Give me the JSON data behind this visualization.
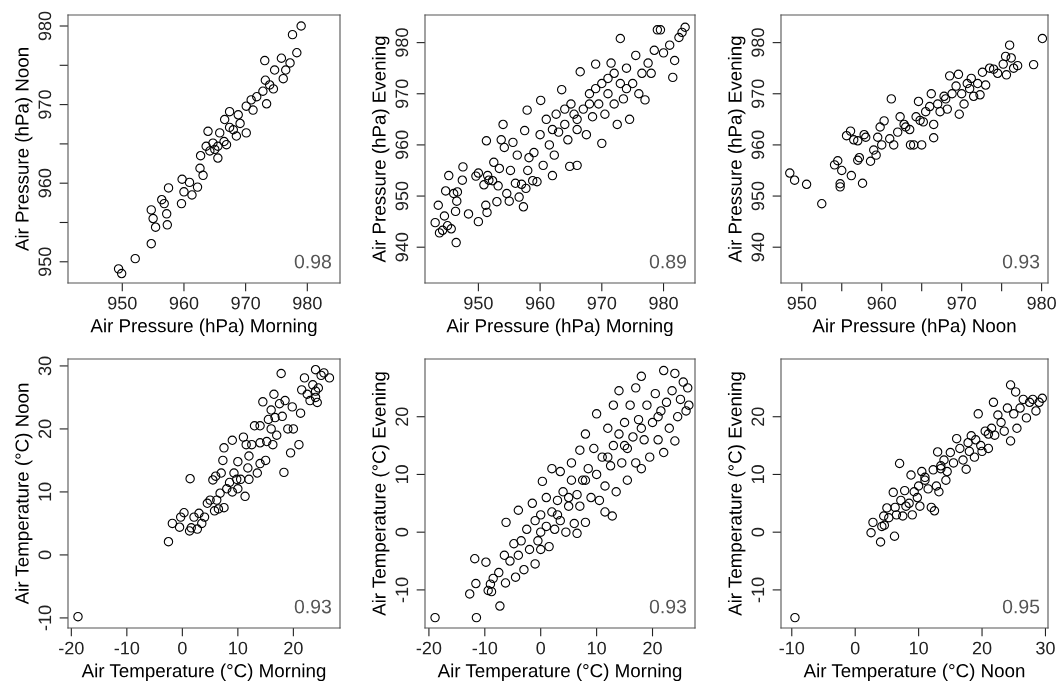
{
  "chart_data": [
    {
      "type": "scatter",
      "xlabel": "Air Pressure (hPa) Morning",
      "ylabel": "Air Pressure (hPa) Noon",
      "annotations": [
        "0.98"
      ],
      "marker": "circle",
      "grid": false,
      "legend": false,
      "xlim": [
        941.2,
        985.3
      ],
      "ylim": [
        947.3,
        981.4
      ],
      "xticks": [
        950,
        960,
        970,
        980
      ],
      "yticks": [
        950,
        {
          "value": 955,
          "label": null
        },
        960,
        {
          "value": 965,
          "label": null
        },
        970,
        {
          "value": 975,
          "label": null
        },
        980
      ],
      "series": [
        {
          "color": "#000000",
          "x": [
            949.4,
            949.9,
            952.1,
            954.7,
            954.7,
            955.0,
            955.4,
            956.4,
            956.8,
            957.2,
            957.3,
            957.5,
            959.6,
            960.0,
            959.7,
            961.3,
            960.9,
            962.2,
            962.6,
            962.7,
            963.1,
            963.9,
            963.6,
            964.2,
            965.0,
            965.5,
            965.8,
            966.5,
            966.9,
            967.4,
            968.0,
            968.5,
            968.8,
            970.1,
            970.1,
            970.9,
            971.8,
            972.8,
            973.4,
            973.2,
            973.9,
            974.5,
            974.7,
            976.1,
            975.8,
            973.1,
            976.5,
            977.2,
            978.3,
            977.6,
            979.0,
            967.4,
            966.6,
            964.7,
            969.1,
            971.2,
            965.5
          ],
          "values": [
            949.1,
            948.5,
            950.4,
            952.3,
            956.6,
            955.5,
            954.4,
            957.9,
            957.4,
            956.1,
            954.7,
            959.4,
            957.4,
            958.9,
            960.5,
            958.5,
            960.1,
            959.5,
            961.9,
            963.5,
            961.0,
            966.6,
            964.7,
            964.1,
            964.3,
            963.2,
            966.4,
            965.3,
            964.9,
            967.1,
            966.8,
            966.0,
            968.7,
            966.4,
            969.8,
            970.6,
            971.0,
            971.7,
            970.1,
            973.1,
            972.5,
            972.0,
            974.4,
            973.3,
            975.9,
            975.6,
            974.4,
            975.3,
            976.6,
            978.9,
            980.0,
            969.1,
            968.1,
            965.1,
            967.6,
            969.3,
            964.7
          ]
        }
      ]
    },
    {
      "type": "scatter",
      "xlabel": "Air Pressure (hPa) Morning",
      "ylabel": "Air Pressure (hPa) Evening",
      "annotations": [
        "0.89"
      ],
      "marker": "circle",
      "grid": false,
      "legend": false,
      "xlim": [
        941.35,
        985.1
      ],
      "ylim": [
        933.0,
        985.4
      ],
      "xticks": [
        950,
        960,
        970,
        980
      ],
      "yticks": [
        940,
        950,
        960,
        970,
        980
      ],
      "series": [
        {
          "color": "#000000",
          "x": [
            943.0,
            943.5,
            943.7,
            944.2,
            944.5,
            944.7,
            945.0,
            945.2,
            945.6,
            946.0,
            946.3,
            946.5,
            946.4,
            946.6,
            947.5,
            947.4,
            948.4,
            949.6,
            950.0,
            950.0,
            950.9,
            951.2,
            951.4,
            951.3,
            951.5,
            951.7,
            952.3,
            952.5,
            953.0,
            953.2,
            953.4,
            953.7,
            954.0,
            954.2,
            954.6,
            955.0,
            955.2,
            955.6,
            956.0,
            956.3,
            956.6,
            957.0,
            957.3,
            957.5,
            957.7,
            957.9,
            958.0,
            958.2,
            958.8,
            959.0,
            959.5,
            960.0,
            960.1,
            960.5,
            961.0,
            961.5,
            962.0,
            962.3,
            962.6,
            963.0,
            963.5,
            964.0,
            964.5,
            964.8,
            965.0,
            965.5,
            966.0,
            966.0,
            966.5,
            967.0,
            967.5,
            968.0,
            968.5,
            969.0,
            969.5,
            970.0,
            970.0,
            970.5,
            971.0,
            971.5,
            972.0,
            972.5,
            973.0,
            973.0,
            973.5,
            974.0,
            974.5,
            975.0,
            975.5,
            976.0,
            976.5,
            977.0,
            977.5,
            978.0,
            978.5,
            979.0,
            979.5,
            980.0,
            981.0,
            981.5,
            981.8,
            982.5,
            983.0,
            983.5,
            966.0,
            968.0,
            971.0,
            974.0,
            964.0,
            962.0,
            969.0,
            972.0
          ],
          "values": [
            944.8,
            948.2,
            942.8,
            943.3,
            946.1,
            951.0,
            944.2,
            954.0,
            943.6,
            950.5,
            947.0,
            949.0,
            940.9,
            950.8,
            955.7,
            953.1,
            946.5,
            953.9,
            945.0,
            954.5,
            952.2,
            948.2,
            946.8,
            960.8,
            954.0,
            953.1,
            953.0,
            956.6,
            948.9,
            952.0,
            955.4,
            961.0,
            964.0,
            959.5,
            950.5,
            949.0,
            955.0,
            960.5,
            952.5,
            958.0,
            949.8,
            952.3,
            947.9,
            962.8,
            951.5,
            966.8,
            955.0,
            957.5,
            953.0,
            958.5,
            952.8,
            962.0,
            968.7,
            956.0,
            965.0,
            960.0,
            954.0,
            958.0,
            966.0,
            962.5,
            970.8,
            964.0,
            961.0,
            955.8,
            968.0,
            966.0,
            963.0,
            956.0,
            974.3,
            967.0,
            962.0,
            970.0,
            965.5,
            975.8,
            968.0,
            960.3,
            972.0,
            966.0,
            970.0,
            976.0,
            968.0,
            964.0,
            980.8,
            972.0,
            969.0,
            975.0,
            965.0,
            972.0,
            977.5,
            970.0,
            974.0,
            968.8,
            976.0,
            974.0,
            978.5,
            982.5,
            982.5,
            978.0,
            979.5,
            973.2,
            976.5,
            981.0,
            982.0,
            983.0,
            965.0,
            968.0,
            973.0,
            971.0,
            967.0,
            963.0,
            971.0,
            974.0
          ]
        }
      ]
    },
    {
      "type": "scatter",
      "xlabel": "Air Pressure (hPa) Noon",
      "ylabel": "Air Pressure (hPa) Evening",
      "annotations": [
        "0.93"
      ],
      "marker": "circle",
      "grid": false,
      "legend": false,
      "xlim": [
        947.4,
        980.8
      ],
      "ylim": [
        933.0,
        985.4
      ],
      "xticks": [
        950,
        {
          "value": 955,
          "label": null
        },
        960,
        {
          "value": 965,
          "label": null
        },
        970,
        {
          "value": 975,
          "label": null
        },
        980
      ],
      "yticks": [
        940,
        950,
        960,
        970,
        980
      ],
      "series": [
        {
          "color": "#000000",
          "x": [
            948.5,
            949.1,
            950.6,
            952.5,
            954.1,
            954.5,
            954.8,
            954.8,
            955.0,
            955.6,
            956.1,
            956.2,
            956.5,
            957.0,
            957.2,
            957.0,
            957.6,
            957.8,
            958.0,
            958.6,
            959.0,
            959.3,
            959.5,
            959.8,
            960.0,
            960.3,
            961.0,
            961.2,
            961.5,
            962.0,
            962.3,
            962.8,
            963.5,
            963.6,
            964.0,
            964.3,
            964.6,
            965.0,
            965.2,
            965.5,
            966.2,
            966.5,
            966.5,
            967.0,
            967.3,
            967.8,
            968.2,
            968.5,
            968.8,
            969.3,
            969.6,
            969.7,
            970.0,
            970.3,
            970.7,
            971.2,
            971.5,
            972.0,
            972.3,
            972.6,
            973.0,
            973.5,
            974.0,
            974.5,
            975.2,
            975.5,
            975.6,
            976.0,
            976.2,
            976.5,
            977.0,
            979.0,
            980.1,
            966.0,
            968.0,
            971.0,
            964.8,
            963.0
          ],
          "values": [
            954.5,
            953.1,
            952.3,
            948.5,
            956.1,
            956.9,
            952.4,
            951.8,
            955.0,
            961.8,
            962.7,
            954.0,
            961.0,
            957.0,
            957.5,
            960.8,
            952.5,
            962.0,
            961.5,
            956.8,
            959.0,
            958.0,
            961.5,
            963.5,
            960.0,
            964.7,
            961.2,
            969.0,
            960.0,
            962.5,
            965.5,
            964.0,
            963.0,
            960.0,
            960.0,
            965.5,
            968.5,
            960.0,
            964.5,
            966.5,
            970.0,
            964.0,
            961.4,
            968.0,
            966.5,
            969.5,
            967.0,
            973.5,
            970.0,
            971.5,
            973.8,
            966.0,
            970.0,
            968.0,
            972.0,
            973.0,
            969.5,
            972.0,
            969.8,
            974.2,
            971.7,
            975.0,
            974.8,
            974.0,
            975.8,
            977.3,
            973.7,
            979.5,
            977.0,
            975.0,
            975.5,
            975.7,
            980.8,
            967.5,
            969.0,
            971.0,
            964.8,
            963.5
          ]
        }
      ]
    },
    {
      "type": "scatter",
      "xlabel": "Air Temperature (°C) Morning",
      "ylabel": "Air Temperature (°C) Noon",
      "annotations": [
        "0.93"
      ],
      "marker": "circle",
      "grid": false,
      "legend": false,
      "xlim": [
        -20.6,
        28.4
      ],
      "ylim": [
        -11.6,
        31.1
      ],
      "xticks": [
        -20,
        -10,
        0,
        10,
        20
      ],
      "yticks": [
        -10,
        0,
        10,
        20,
        30
      ],
      "series": [
        {
          "color": "#000000",
          "x": [
            -18.8,
            -2.5,
            -1.8,
            -0.5,
            -0.3,
            0.3,
            1.4,
            1.3,
            1.6,
            2.1,
            2.7,
            3.0,
            3.5,
            4.0,
            4.5,
            5.0,
            5.5,
            5.8,
            6.0,
            6.2,
            6.5,
            6.8,
            7.0,
            7.3,
            7.5,
            7.5,
            8.0,
            8.5,
            9.0,
            9.0,
            9.3,
            9.8,
            10.0,
            10.5,
            11.0,
            11.3,
            11.5,
            11.8,
            12.0,
            12.5,
            13.0,
            13.5,
            14.0,
            14.0,
            14.5,
            15.0,
            15.2,
            15.5,
            16.0,
            16.3,
            16.5,
            16.7,
            17.0,
            17.5,
            17.8,
            18.0,
            18.3,
            18.5,
            19.0,
            19.5,
            19.8,
            20.0,
            21.0,
            21.3,
            21.5,
            22.0,
            22.5,
            23.0,
            23.5,
            24.0,
            24.0,
            24.3,
            24.5,
            25.0,
            25.5,
            26.5,
            12.0,
            10.0,
            16.0,
            14.0,
            24.0
          ],
          "values": [
            -9.8,
            2.1,
            5.0,
            4.4,
            6.0,
            6.7,
            12.1,
            3.8,
            4.3,
            6.0,
            4.1,
            6.6,
            5.0,
            6.0,
            8.2,
            8.7,
            11.9,
            7.0,
            12.5,
            8.7,
            7.3,
            9.8,
            13.0,
            15.0,
            7.5,
            17.0,
            10.5,
            11.5,
            18.2,
            10.0,
            13.0,
            12.0,
            14.8,
            12.0,
            18.7,
            9.3,
            17.5,
            13.8,
            15.7,
            17.5,
            20.5,
            13.0,
            17.8,
            20.5,
            24.3,
            15.0,
            18.0,
            21.5,
            23.0,
            17.5,
            25.5,
            21.8,
            19.0,
            24.0,
            28.8,
            22.0,
            13.1,
            24.5,
            20.0,
            16.2,
            23.5,
            20.0,
            17.5,
            22.5,
            26.2,
            28.1,
            25.5,
            24.5,
            27.0,
            29.4,
            25.0,
            24.2,
            26.5,
            28.5,
            28.9,
            28.1,
            12.0,
            10.5,
            20.0,
            14.5,
            26.0
          ]
        }
      ]
    },
    {
      "type": "scatter",
      "xlabel": "Air Temperature (°C) Morning",
      "ylabel": "Air Temperature (°C) Evening",
      "annotations": [
        "0.93"
      ],
      "marker": "circle",
      "grid": false,
      "legend": false,
      "xlim": [
        -20.7,
        27.6
      ],
      "ylim": [
        -16.6,
        30.0
      ],
      "xticks": [
        -20,
        -10,
        0,
        10,
        20
      ],
      "yticks": [
        -10,
        0,
        10,
        20
      ],
      "series": [
        {
          "color": "#000000",
          "x": [
            -18.9,
            -11.5,
            -12.7,
            -11.8,
            -11.6,
            -9.8,
            -9.4,
            -9.0,
            -8.8,
            -8.5,
            -7.5,
            -7.3,
            -6.5,
            -6.3,
            -6.2,
            -5.5,
            -4.8,
            -4.5,
            -4.0,
            -4.0,
            -3.5,
            -3.0,
            -2.5,
            -2.0,
            -1.5,
            -1.0,
            -1.0,
            -0.5,
            0.0,
            0.0,
            0.3,
            1.0,
            1.0,
            1.5,
            2.0,
            2.0,
            2.5,
            3.0,
            3.5,
            3.5,
            4.0,
            4.5,
            5.0,
            5.5,
            5.5,
            6.0,
            6.5,
            6.5,
            7.0,
            7.0,
            7.5,
            8.0,
            8.0,
            8.5,
            9.0,
            9.5,
            10.0,
            10.0,
            10.5,
            11.0,
            11.5,
            11.5,
            12.0,
            12.5,
            12.8,
            13.0,
            13.0,
            13.5,
            14.0,
            14.0,
            14.5,
            15.0,
            15.5,
            15.5,
            16.0,
            16.5,
            17.0,
            17.0,
            17.5,
            18.0,
            18.0,
            18.5,
            19.0,
            19.5,
            20.0,
            20.5,
            21.0,
            21.5,
            22.0,
            22.0,
            22.5,
            23.0,
            23.5,
            24.0,
            24.0,
            24.5,
            25.0,
            25.5,
            26.0,
            26.3,
            26.5,
            5.0,
            3.0,
            8.0,
            15.0,
            18.0,
            21.0,
            12.0,
            0.0
          ],
          "values": [
            -14.8,
            -14.8,
            -10.7,
            -4.6,
            -8.9,
            -5.2,
            -10.1,
            -9.0,
            -10.3,
            -8.0,
            -7.0,
            -12.8,
            -4.0,
            -8.8,
            1.7,
            -5.0,
            -2.0,
            -7.8,
            3.8,
            -4.0,
            -1.5,
            -6.5,
            0.5,
            -3.0,
            5.0,
            2.0,
            -5.5,
            -1.5,
            3.0,
            -3.0,
            8.8,
            1.0,
            6.0,
            -2.5,
            3.5,
            11.0,
            0.5,
            5.5,
            10.5,
            2.0,
            7.0,
            0.0,
            4.5,
            9.0,
            12.0,
            1.5,
            6.5,
            -0.2,
            14.2,
            4.5,
            9.0,
            1.7,
            17.0,
            11.0,
            6.0,
            14.5,
            10.0,
            20.5,
            5.5,
            13.0,
            8.0,
            3.5,
            18.0,
            11.5,
            2.8,
            15.0,
            22.0,
            7.0,
            17.0,
            24.5,
            12.0,
            19.0,
            9.0,
            14.5,
            22.0,
            16.5,
            25.0,
            12.0,
            19.5,
            27.0,
            11.0,
            16.0,
            22.0,
            13.0,
            19.0,
            24.0,
            16.0,
            21.0,
            28.0,
            13.8,
            22.5,
            18.0,
            24.5,
            15.8,
            27.5,
            20.0,
            23.0,
            26.0,
            21.0,
            25.0,
            22.0,
            6.0,
            3.0,
            9.0,
            15.0,
            18.0,
            20.0,
            13.0,
            0.0
          ]
        }
      ]
    },
    {
      "type": "scatter",
      "xlabel": "Air Temperature (°C) Noon",
      "ylabel": "Air Temperature (°C) Evening",
      "annotations": [
        "0.95"
      ],
      "marker": "circle",
      "grid": false,
      "legend": false,
      "xlim": [
        -11.7,
        30.4
      ],
      "ylim": [
        -16.6,
        30.0
      ],
      "xticks": [
        -10,
        0,
        10,
        20,
        30
      ],
      "yticks": [
        -10,
        0,
        10,
        20
      ],
      "series": [
        {
          "color": "#000000",
          "x": [
            -9.5,
            2.5,
            2.8,
            4.0,
            4.2,
            4.6,
            4.5,
            5.0,
            5.3,
            6.0,
            6.2,
            6.3,
            6.5,
            7.0,
            7.2,
            7.5,
            7.8,
            8.0,
            8.5,
            8.8,
            9.0,
            9.3,
            9.8,
            10.0,
            10.2,
            10.5,
            11.0,
            11.5,
            12.0,
            12.3,
            12.5,
            12.8,
            13.0,
            13.2,
            13.5,
            14.0,
            14.3,
            14.5,
            15.0,
            15.5,
            16.0,
            17.0,
            17.5,
            17.8,
            18.0,
            18.3,
            18.8,
            19.0,
            19.4,
            19.8,
            20.0,
            20.5,
            21.0,
            21.5,
            21.8,
            22.0,
            22.5,
            23.0,
            23.5,
            24.0,
            24.5,
            24.5,
            25.0,
            25.3,
            25.5,
            26.0,
            26.5,
            27.0,
            27.5,
            28.0,
            28.5,
            29.0,
            29.5,
            16.5,
            13.5,
            11.0,
            21.0
          ],
          "values": [
            -14.8,
            -0.1,
            1.7,
            -1.7,
            1.0,
            1.2,
            2.8,
            4.2,
            2.5,
            6.9,
            -0.7,
            4.3,
            3.0,
            11.9,
            5.5,
            2.8,
            7.2,
            4.5,
            5.0,
            9.9,
            3.0,
            7.0,
            6.0,
            8.0,
            4.5,
            10.5,
            9.5,
            7.5,
            4.3,
            10.8,
            3.7,
            8.0,
            13.9,
            7.0,
            11.0,
            12.5,
            9.0,
            10.5,
            13.8,
            12.0,
            16.2,
            12.5,
            10.9,
            15.5,
            14.0,
            16.7,
            13.0,
            16.0,
            20.5,
            15.0,
            14.0,
            17.5,
            14.5,
            18.0,
            22.5,
            16.8,
            20.3,
            19.0,
            17.5,
            21.5,
            15.8,
            25.5,
            20.5,
            24.3,
            18.0,
            21.5,
            23.0,
            19.8,
            22.5,
            23.0,
            21.0,
            22.5,
            23.2,
            14.5,
            11.5,
            9.0,
            17.0
          ]
        }
      ]
    }
  ]
}
